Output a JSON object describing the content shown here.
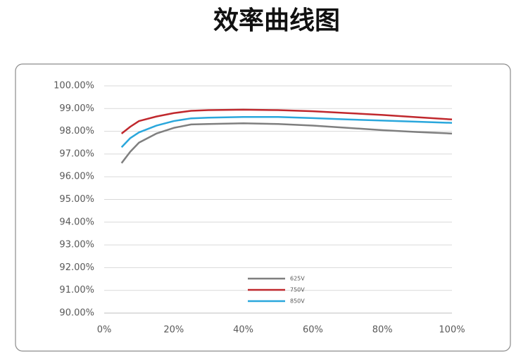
{
  "chart_data": {
    "type": "line",
    "title": "效率曲线图",
    "x": [
      5,
      7.5,
      10,
      15,
      20,
      25,
      30,
      40,
      50,
      60,
      70,
      80,
      90,
      100
    ],
    "series": [
      {
        "name": "625V",
        "color": "#7f7f7f",
        "values": [
          96.6,
          97.1,
          97.5,
          97.9,
          98.15,
          98.3,
          98.32,
          98.35,
          98.32,
          98.25,
          98.15,
          98.05,
          97.97,
          97.9
        ]
      },
      {
        "name": "750V",
        "color": "#c0282d",
        "values": [
          97.9,
          98.2,
          98.45,
          98.65,
          98.8,
          98.9,
          98.93,
          98.95,
          98.93,
          98.88,
          98.8,
          98.72,
          98.62,
          98.52
        ]
      },
      {
        "name": "850V",
        "color": "#2aa7dc",
        "values": [
          97.3,
          97.7,
          97.95,
          98.25,
          98.45,
          98.57,
          98.6,
          98.63,
          98.63,
          98.58,
          98.52,
          98.47,
          98.42,
          98.37
        ]
      }
    ],
    "xlim": [
      0,
      100
    ],
    "xticks": [
      {
        "value": 0,
        "label": "0%"
      },
      {
        "value": 20,
        "label": "20%"
      },
      {
        "value": 40,
        "label": "40%"
      },
      {
        "value": 60,
        "label": "60%"
      },
      {
        "value": 80,
        "label": "80%"
      },
      {
        "value": 100,
        "label": "100%"
      }
    ],
    "ylim": [
      90,
      100
    ],
    "yticks": [
      {
        "value": 90,
        "label": "90.00%"
      },
      {
        "value": 91,
        "label": "91.00%"
      },
      {
        "value": 92,
        "label": "92.00%"
      },
      {
        "value": 93,
        "label": "93.00%"
      },
      {
        "value": 94,
        "label": "94.00%"
      },
      {
        "value": 95,
        "label": "95.00%"
      },
      {
        "value": 96,
        "label": "96.00%"
      },
      {
        "value": 97,
        "label": "97.00%"
      },
      {
        "value": 98,
        "label": "98.00%"
      },
      {
        "value": 99,
        "label": "99.00%"
      },
      {
        "value": 100,
        "label": "100.00%"
      }
    ],
    "grid": true,
    "legend": "bottom"
  }
}
